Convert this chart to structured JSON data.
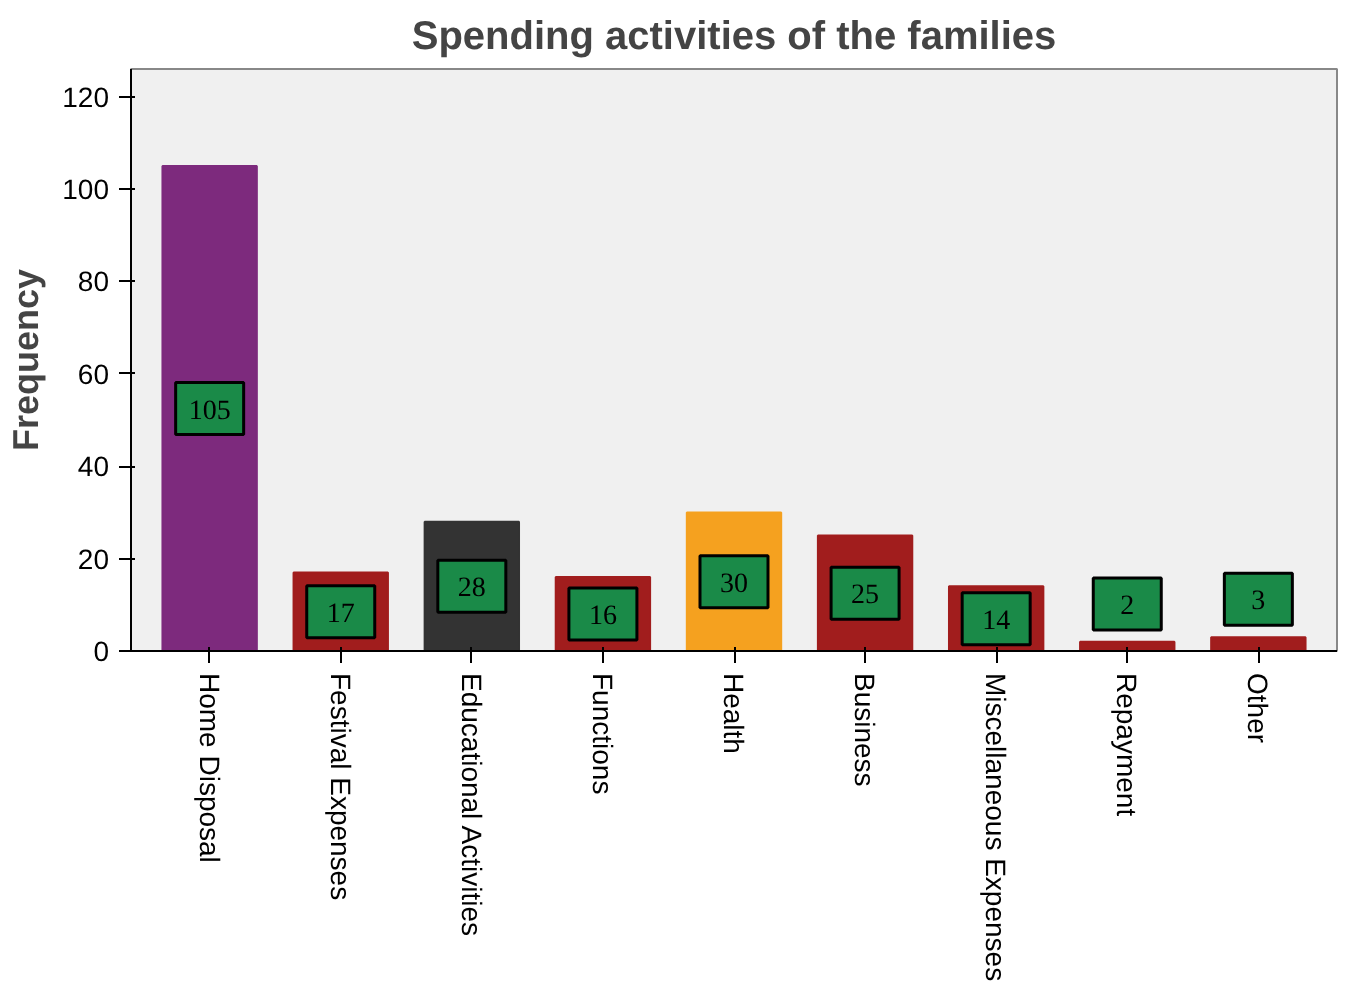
{
  "chart_data": {
    "type": "bar",
    "title": "Spending activities of the families",
    "ylabel": "Frequency",
    "categories": [
      "Home Disposal",
      "Festival Expenses",
      "Educational Activities",
      "Functions",
      "Health",
      "Business",
      "Miscellaneous Expenses",
      "Repayment",
      "Other"
    ],
    "values": [
      105,
      17,
      28,
      16,
      30,
      25,
      14,
      2,
      3
    ],
    "colors": [
      "#7d2a7d",
      "#a11d1d",
      "#333333",
      "#a11d1d",
      "#f5a11f",
      "#a11d1d",
      "#a11d1d",
      "#a11d1d",
      "#a11d1d"
    ],
    "ylim": [
      0,
      126
    ],
    "yticks": [
      0,
      20,
      40,
      60,
      80,
      100,
      120
    ],
    "grid": false,
    "legend": false,
    "data_labels": true
  }
}
